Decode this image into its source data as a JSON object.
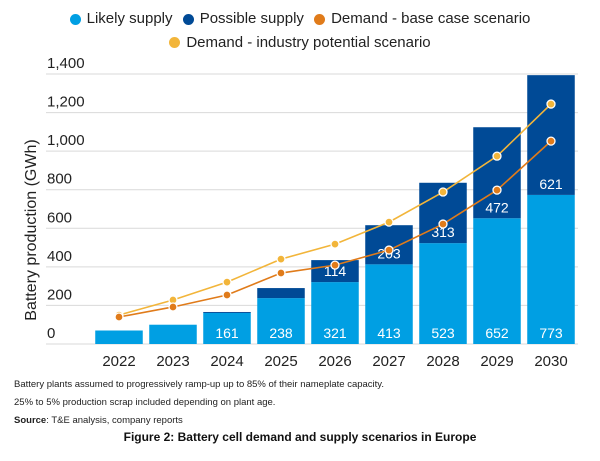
{
  "chart_data": {
    "type": "bar",
    "stacked": true,
    "title": "Figure 2: Battery cell demand and supply scenarios in Europe",
    "xlabel": "",
    "ylabel": "Battery production (GWh)",
    "ylim": [
      0,
      1400
    ],
    "yticks": [
      0,
      200,
      400,
      600,
      800,
      1000,
      1200,
      1400
    ],
    "ytick_labels": [
      "0",
      "200",
      "400",
      "600",
      "800",
      "1,000",
      "1,200",
      "1,400"
    ],
    "grid": true,
    "legend_position": "top-center",
    "categories": [
      "2022",
      "2023",
      "2024",
      "2025",
      "2026",
      "2027",
      "2028",
      "2029",
      "2030"
    ],
    "series": [
      {
        "name": "Likely supply",
        "kind": "bar",
        "color": "#009FE3",
        "values": [
          70,
          100,
          161,
          238,
          321,
          413,
          523,
          652,
          773
        ],
        "labels": [
          "",
          "",
          "161",
          "238",
          "321",
          "413",
          "523",
          "652",
          "773"
        ]
      },
      {
        "name": "Possible supply",
        "kind": "bar",
        "color": "#004A96",
        "values": [
          0,
          0,
          5,
          52,
          114,
          203,
          313,
          472,
          621
        ],
        "labels": [
          "",
          "",
          "",
          "",
          "114",
          "203",
          "313",
          "472",
          "621"
        ]
      },
      {
        "name": "Demand - base case scenario",
        "kind": "line",
        "color": "#E07B1A",
        "values": [
          140,
          192,
          254,
          368,
          409,
          487,
          622,
          798,
          1052
        ]
      },
      {
        "name": "Demand - industry potential scenario",
        "kind": "line",
        "color": "#F2B53A",
        "values": [
          150,
          228,
          321,
          440,
          518,
          632,
          788,
          974,
          1244
        ]
      }
    ]
  },
  "legend": {
    "row1": [
      {
        "label": "Likely supply",
        "color": "#009FE3"
      },
      {
        "label": "Possible supply",
        "color": "#004A96"
      },
      {
        "label": "Demand - base case scenario",
        "color": "#E07B1A"
      }
    ],
    "row2": [
      {
        "label": "Demand - industry potential scenario",
        "color": "#F2B53A"
      }
    ]
  },
  "notes": {
    "line1": "Battery plants assumed to progressively ramp-up up to 85% of their nameplate capacity.",
    "line2": "25% to 5% production scrap included depending on plant age.",
    "source_label": "Source",
    "source_text": ": T&E analysis, company reports"
  },
  "caption": "Figure 2: Battery cell demand and supply scenarios in Europe"
}
